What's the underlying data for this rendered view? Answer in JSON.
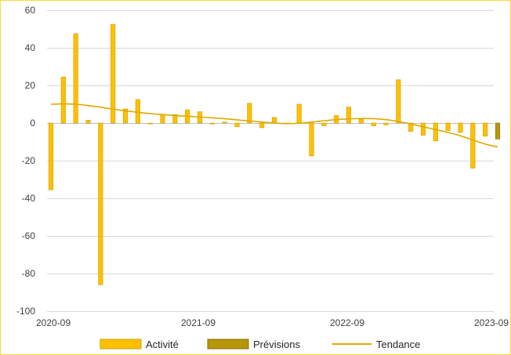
{
  "chart_data": {
    "type": "bar",
    "title": "",
    "xlabel": "",
    "ylabel": "",
    "ylim": [
      -100,
      60
    ],
    "yticks": [
      60,
      40,
      20,
      0,
      -20,
      -40,
      -60,
      -80,
      -100
    ],
    "x_tick_labels": [
      "2020-09",
      "2021-09",
      "2022-09",
      "2023-09"
    ],
    "grid": true,
    "legend_position": "bottom",
    "colors": {
      "activite": "#ffc000",
      "activite_edge": "#c9a000",
      "previsions": "#b8960c",
      "tendance": "#e0a800",
      "frame": "#ffdb3c"
    },
    "categories": [
      "2020-09",
      "2020-10",
      "2020-11",
      "2020-12",
      "2021-01",
      "2021-02",
      "2021-03",
      "2021-04",
      "2021-05",
      "2021-06",
      "2021-07",
      "2021-08",
      "2021-09",
      "2021-10",
      "2021-11",
      "2021-12",
      "2022-01",
      "2022-02",
      "2022-03",
      "2022-04",
      "2022-05",
      "2022-06",
      "2022-07",
      "2022-08",
      "2022-09",
      "2022-10",
      "2022-11",
      "2022-12",
      "2023-01",
      "2023-02",
      "2023-03",
      "2023-04",
      "2023-05",
      "2023-06",
      "2023-07",
      "2023-08",
      "2023-09"
    ],
    "series": [
      {
        "name": "Activité",
        "kind": "bar",
        "values": [
          -35.5,
          24.5,
          47.5,
          1.5,
          -86,
          52.5,
          7.5,
          12.5,
          -0.5,
          4.5,
          4.5,
          7.0,
          6.0,
          -0.5,
          0.5,
          -2.0,
          10.5,
          -2.5,
          3.0,
          -0.5,
          10.0,
          -17.5,
          -1.5,
          4.0,
          8.5,
          2.0,
          -1.5,
          -1.0,
          23.0,
          -4.5,
          -6.5,
          -9.5,
          -4.0,
          -5.0,
          -24.0,
          -7.0,
          null
        ]
      },
      {
        "name": "Prévisions",
        "kind": "bar",
        "values": [
          null,
          null,
          null,
          null,
          null,
          null,
          null,
          null,
          null,
          null,
          null,
          null,
          null,
          null,
          null,
          null,
          null,
          null,
          null,
          null,
          null,
          null,
          null,
          null,
          null,
          null,
          null,
          null,
          null,
          null,
          null,
          null,
          null,
          null,
          null,
          null,
          -8.5
        ]
      },
      {
        "name": "Tendance",
        "kind": "line",
        "values": [
          10.0,
          10.2,
          10.0,
          9.3,
          8.4,
          7.4,
          6.5,
          5.7,
          5.0,
          4.5,
          4.0,
          3.6,
          3.2,
          2.8,
          2.3,
          1.7,
          1.1,
          0.5,
          0.0,
          -0.3,
          -0.1,
          0.5,
          1.2,
          1.8,
          2.2,
          2.4,
          2.3,
          1.8,
          0.8,
          -0.5,
          -2.0,
          -3.5,
          -5.0,
          -6.8,
          -9.0,
          -11.2,
          -12.7
        ]
      }
    ]
  }
}
